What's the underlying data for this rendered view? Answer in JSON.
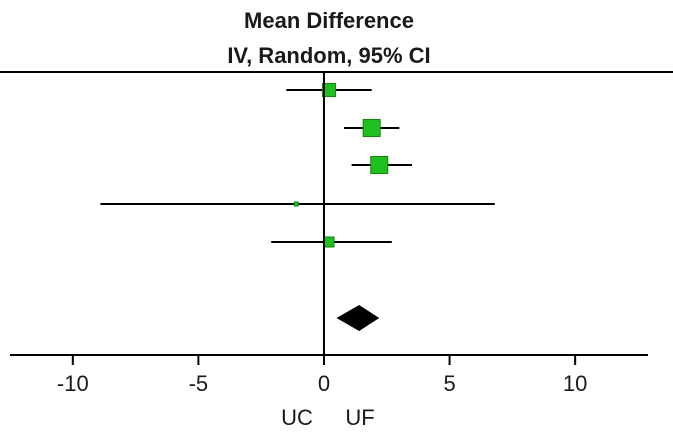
{
  "chart_data": {
    "type": "forest",
    "title": "Mean Difference",
    "subtitle": "IV, Random, 95% CI",
    "xlim": [
      -12.5,
      12.9
    ],
    "xticks": [
      -10,
      -5,
      0,
      5,
      10
    ],
    "tick_labels": [
      "-10",
      "-5",
      "0",
      "5",
      "10"
    ],
    "xlabel_left": "UC",
    "xlabel_right": "UF",
    "studies": [
      {
        "mean": 0.2,
        "ci": [
          -1.5,
          1.9
        ],
        "weight": "medium"
      },
      {
        "mean": 1.9,
        "ci": [
          0.8,
          3.0
        ],
        "weight": "large"
      },
      {
        "mean": 2.2,
        "ci": [
          1.1,
          3.5
        ],
        "weight": "large"
      },
      {
        "mean": -1.1,
        "ci": [
          -8.9,
          6.8
        ],
        "weight": "tiny"
      },
      {
        "mean": 0.2,
        "ci": [
          -2.1,
          2.7
        ],
        "weight": "small"
      }
    ],
    "overall": {
      "mean": 1.4,
      "ci": [
        0.5,
        2.2
      ]
    },
    "colors": {
      "study_marker": "#1fbf1f",
      "study_marker_border": "#0e8a0e",
      "overall": "#000000",
      "lines": "#000000"
    }
  }
}
